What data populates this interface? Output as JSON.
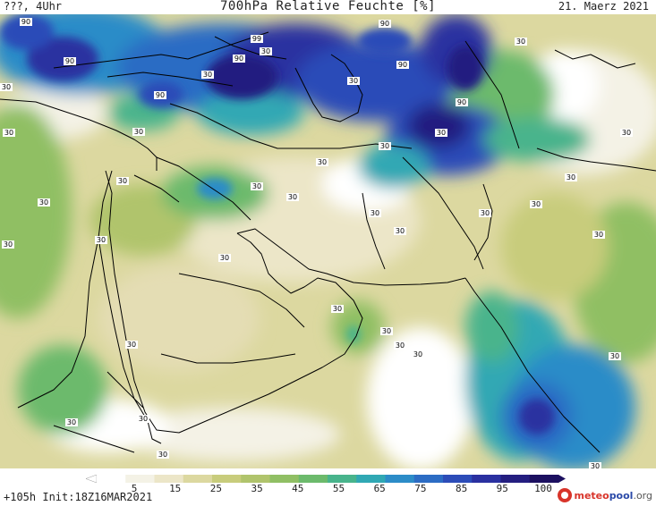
{
  "header": {
    "left": "???, 4Uhr",
    "center": "700hPa Relative Feuchte [%]",
    "right": "21. Maerz 2021"
  },
  "footer": {
    "run_info": "+105h Init:18Z16MAR2021",
    "logo": {
      "meteo": "meteo",
      "pool": "pool",
      "org": ".org"
    }
  },
  "colorbar": {
    "tick_labels": [
      "5",
      "15",
      "25",
      "35",
      "45",
      "55",
      "65",
      "75",
      "85",
      "95",
      "100"
    ],
    "colors": [
      "#ffffff",
      "#f4f2e6",
      "#ece6c8",
      "#dcd8a0",
      "#c8cc7c",
      "#b0c46c",
      "#90bf64",
      "#6cba6c",
      "#48b48c",
      "#30a8b4",
      "#2c8cc8",
      "#2c6cc4",
      "#2c4cb8",
      "#2a30a0",
      "#241e80",
      "#1c1060"
    ]
  },
  "map_labels": {
    "values": [
      "90",
      "99",
      "90",
      "30",
      "90",
      "30",
      "90",
      "90",
      "90",
      "90",
      "30",
      "30",
      "30",
      "30",
      "30",
      "30",
      "30",
      "30",
      "30",
      "30",
      "30",
      "30",
      "30",
      "30",
      "30",
      "30",
      "30",
      "30",
      "30",
      "30",
      "30",
      "30",
      "30",
      "30",
      "30",
      "30",
      "30",
      "30",
      "30",
      "30",
      "30",
      "30",
      "30"
    ]
  }
}
